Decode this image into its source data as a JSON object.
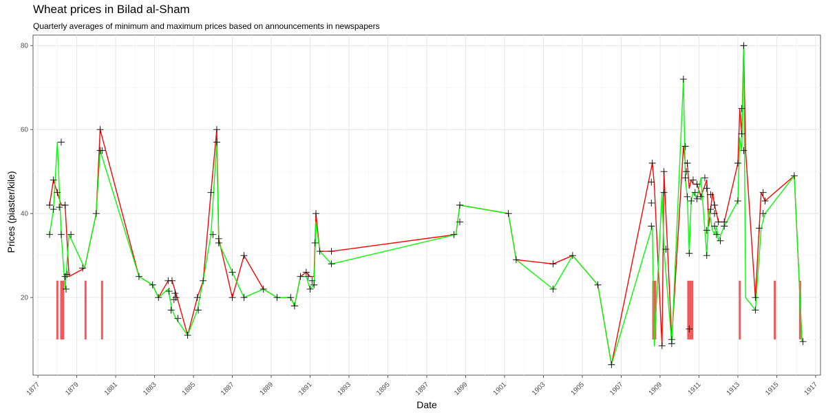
{
  "chart_data": {
    "type": "line",
    "title": "Wheat prices in Bilad al-Sham",
    "subtitle": "Quarterly averages of minimum and maximum prices based on announcements in newspapers",
    "xlabel": "Date",
    "ylabel": "Prices (piaster/kile)",
    "xlim": [
      1876.75,
      1917.25
    ],
    "ylim": [
      1.5,
      82.5
    ],
    "y_ticks": [
      20,
      40,
      60,
      80
    ],
    "x_ticks": [
      "1877",
      "1879",
      "1881",
      "1883",
      "1885",
      "1887",
      "1889",
      "1891",
      "1893",
      "1895",
      "1897",
      "1899",
      "1901",
      "1903",
      "1905",
      "1907",
      "1909",
      "1911",
      "1913",
      "1915",
      "1917"
    ],
    "grid": true,
    "colors": {
      "min_line": "#00FF00",
      "max_line": "#FF0000",
      "markers": "#000000",
      "bars": "#F0595A"
    },
    "series": [
      {
        "role": "max",
        "x": [
          1877.6,
          1877.8,
          1878.0,
          1878.2,
          1878.4,
          1878.6,
          1879.4,
          1880.0,
          1880.2,
          1882.2,
          1882.9,
          1883.2,
          1883.7,
          1883.9,
          1884.1,
          1884.7,
          1885.2,
          1885.5,
          1885.9,
          1886.2,
          1886.3,
          1887.0,
          1887.6,
          1888.6,
          1889.3,
          1890.0,
          1890.2,
          1890.5,
          1890.8,
          1891.0,
          1891.2,
          1891.3,
          1891.5,
          1892.1,
          1898.5,
          1898.7,
          1901.2,
          1901.6,
          1903.5,
          1904.5,
          1905.8,
          1906.5,
          1908.6,
          1908.7,
          1909.1,
          1909.2,
          1909.6,
          1910.2,
          1910.3,
          1910.4,
          1910.5,
          1910.6,
          1910.7,
          1910.9,
          1911.1,
          1911.4,
          1911.5,
          1911.7,
          1911.8,
          1911.9,
          1912.0,
          1912.3,
          1913.0,
          1913.1,
          1913.2,
          1913.3,
          1913.4,
          1913.9,
          1914.2,
          1914.4,
          1915.9,
          1916.3
        ],
        "values": [
          42,
          48,
          45,
          42,
          42,
          25,
          27,
          40,
          60,
          25,
          23,
          20,
          24,
          24,
          21,
          11,
          20,
          24,
          45,
          60,
          34,
          20,
          30,
          22,
          20,
          20,
          18,
          25,
          26,
          25,
          25,
          40,
          31,
          31,
          35,
          42,
          40,
          29,
          28,
          30,
          23,
          4,
          52,
          47,
          8.5,
          50,
          10,
          56,
          52,
          52,
          46,
          48,
          47,
          47,
          44,
          48,
          37,
          45,
          42,
          40,
          38,
          38,
          52,
          65,
          59,
          80,
          55,
          20,
          45,
          43,
          49,
          9.5
        ]
      },
      {
        "role": "min",
        "x": [
          1877.6,
          1877.8,
          1878.0,
          1878.2,
          1878.4,
          1878.6,
          1879.4,
          1880.0,
          1880.2,
          1882.2,
          1882.9,
          1883.2,
          1883.7,
          1883.9,
          1884.1,
          1884.7,
          1885.2,
          1885.5,
          1885.9,
          1886.2,
          1886.3,
          1887.0,
          1887.6,
          1888.6,
          1889.3,
          1890.0,
          1890.2,
          1890.5,
          1890.8,
          1891.0,
          1891.2,
          1891.3,
          1891.5,
          1892.1,
          1898.5,
          1898.7,
          1901.2,
          1901.6,
          1903.5,
          1904.5,
          1905.8,
          1906.5,
          1908.6,
          1908.7,
          1909.1,
          1909.2,
          1909.6,
          1910.2,
          1910.3,
          1910.4,
          1910.5,
          1910.6,
          1910.7,
          1910.9,
          1911.1,
          1911.4,
          1911.5,
          1911.7,
          1911.8,
          1911.9,
          1912.0,
          1912.3,
          1913.0,
          1913.1,
          1913.2,
          1913.3,
          1913.4,
          1913.9,
          1914.2,
          1914.4,
          1915.9,
          1916.3
        ],
        "values": [
          35,
          41,
          57,
          35,
          22,
          35,
          27,
          40,
          55,
          25,
          23,
          20,
          22,
          17,
          15,
          11,
          17,
          24,
          35,
          57,
          33,
          26,
          20,
          22,
          20,
          20,
          18,
          25,
          25,
          22,
          23,
          38,
          31,
          28,
          35,
          42,
          40,
          29,
          22,
          30,
          23,
          4,
          37,
          8.5,
          45,
          31.5,
          9,
          72,
          48,
          44,
          30.5,
          43,
          45,
          43.5,
          48.5,
          30,
          41,
          36,
          35,
          37,
          33.5,
          37,
          43,
          58,
          55,
          80,
          20,
          17,
          36.5,
          40,
          49,
          9.5
        ]
      }
    ],
    "markers": [
      {
        "x": 1877.6,
        "y": 42
      },
      {
        "x": 1877.6,
        "y": 35
      },
      {
        "x": 1877.8,
        "y": 48
      },
      {
        "x": 1877.8,
        "y": 41
      },
      {
        "x": 1878.0,
        "y": 45
      },
      {
        "x": 1878.1,
        "y": 41.5
      },
      {
        "x": 1878.2,
        "y": 57
      },
      {
        "x": 1878.2,
        "y": 35
      },
      {
        "x": 1878.4,
        "y": 42
      },
      {
        "x": 1878.4,
        "y": 25
      },
      {
        "x": 1878.5,
        "y": 25.5
      },
      {
        "x": 1878.45,
        "y": 22
      },
      {
        "x": 1878.7,
        "y": 35
      },
      {
        "x": 1879.3,
        "y": 27
      },
      {
        "x": 1880.0,
        "y": 40
      },
      {
        "x": 1880.2,
        "y": 60
      },
      {
        "x": 1880.2,
        "y": 55
      },
      {
        "x": 1880.3,
        "y": 55
      },
      {
        "x": 1882.2,
        "y": 25
      },
      {
        "x": 1882.9,
        "y": 23
      },
      {
        "x": 1883.2,
        "y": 20
      },
      {
        "x": 1883.7,
        "y": 24
      },
      {
        "x": 1883.75,
        "y": 21.5
      },
      {
        "x": 1883.9,
        "y": 24
      },
      {
        "x": 1883.85,
        "y": 17
      },
      {
        "x": 1884.0,
        "y": 19.5
      },
      {
        "x": 1884.05,
        "y": 21
      },
      {
        "x": 1884.1,
        "y": 20
      },
      {
        "x": 1884.2,
        "y": 15
      },
      {
        "x": 1884.7,
        "y": 11
      },
      {
        "x": 1885.2,
        "y": 20
      },
      {
        "x": 1885.25,
        "y": 17
      },
      {
        "x": 1885.5,
        "y": 24
      },
      {
        "x": 1885.9,
        "y": 45
      },
      {
        "x": 1886.0,
        "y": 35
      },
      {
        "x": 1886.2,
        "y": 60
      },
      {
        "x": 1886.2,
        "y": 57
      },
      {
        "x": 1886.3,
        "y": 34
      },
      {
        "x": 1886.3,
        "y": 33
      },
      {
        "x": 1887.0,
        "y": 26
      },
      {
        "x": 1887.0,
        "y": 20
      },
      {
        "x": 1887.6,
        "y": 30
      },
      {
        "x": 1887.6,
        "y": 20
      },
      {
        "x": 1888.6,
        "y": 22
      },
      {
        "x": 1889.3,
        "y": 20
      },
      {
        "x": 1890.0,
        "y": 20
      },
      {
        "x": 1890.2,
        "y": 18
      },
      {
        "x": 1890.5,
        "y": 25
      },
      {
        "x": 1890.8,
        "y": 26
      },
      {
        "x": 1890.9,
        "y": 25
      },
      {
        "x": 1891.0,
        "y": 22
      },
      {
        "x": 1891.1,
        "y": 24
      },
      {
        "x": 1891.2,
        "y": 23
      },
      {
        "x": 1891.3,
        "y": 40
      },
      {
        "x": 1891.25,
        "y": 33
      },
      {
        "x": 1891.5,
        "y": 31
      },
      {
        "x": 1892.1,
        "y": 31
      },
      {
        "x": 1892.1,
        "y": 28
      },
      {
        "x": 1898.4,
        "y": 35
      },
      {
        "x": 1898.7,
        "y": 42
      },
      {
        "x": 1898.7,
        "y": 38
      },
      {
        "x": 1901.2,
        "y": 40
      },
      {
        "x": 1901.6,
        "y": 29
      },
      {
        "x": 1903.5,
        "y": 28
      },
      {
        "x": 1903.5,
        "y": 22
      },
      {
        "x": 1904.5,
        "y": 30
      },
      {
        "x": 1905.8,
        "y": 23
      },
      {
        "x": 1906.5,
        "y": 4
      },
      {
        "x": 1908.6,
        "y": 52
      },
      {
        "x": 1908.55,
        "y": 47.5
      },
      {
        "x": 1908.55,
        "y": 42.5
      },
      {
        "x": 1908.55,
        "y": 37
      },
      {
        "x": 1909.1,
        "y": 8.5
      },
      {
        "x": 1909.2,
        "y": 50
      },
      {
        "x": 1909.2,
        "y": 45
      },
      {
        "x": 1909.3,
        "y": 31.5
      },
      {
        "x": 1909.6,
        "y": 10
      },
      {
        "x": 1909.6,
        "y": 9
      },
      {
        "x": 1910.2,
        "y": 72
      },
      {
        "x": 1910.3,
        "y": 56
      },
      {
        "x": 1910.35,
        "y": 50
      },
      {
        "x": 1910.3,
        "y": 48.5
      },
      {
        "x": 1910.4,
        "y": 52
      },
      {
        "x": 1910.4,
        "y": 44
      },
      {
        "x": 1910.5,
        "y": 30.5
      },
      {
        "x": 1910.5,
        "y": 12.5
      },
      {
        "x": 1910.6,
        "y": 43
      },
      {
        "x": 1910.7,
        "y": 48
      },
      {
        "x": 1910.8,
        "y": 45
      },
      {
        "x": 1910.9,
        "y": 47
      },
      {
        "x": 1910.9,
        "y": 43.5
      },
      {
        "x": 1911.1,
        "y": 44
      },
      {
        "x": 1911.3,
        "y": 48.5
      },
      {
        "x": 1911.4,
        "y": 46
      },
      {
        "x": 1911.4,
        "y": 36
      },
      {
        "x": 1911.4,
        "y": 30
      },
      {
        "x": 1911.6,
        "y": 44.5
      },
      {
        "x": 1911.6,
        "y": 41
      },
      {
        "x": 1911.8,
        "y": 42
      },
      {
        "x": 1911.8,
        "y": 40
      },
      {
        "x": 1911.8,
        "y": 37
      },
      {
        "x": 1911.9,
        "y": 35
      },
      {
        "x": 1912.0,
        "y": 38
      },
      {
        "x": 1912.1,
        "y": 33.5
      },
      {
        "x": 1912.3,
        "y": 38
      },
      {
        "x": 1912.3,
        "y": 37
      },
      {
        "x": 1913.0,
        "y": 52
      },
      {
        "x": 1913.0,
        "y": 43
      },
      {
        "x": 1913.2,
        "y": 65
      },
      {
        "x": 1913.2,
        "y": 59
      },
      {
        "x": 1913.3,
        "y": 80
      },
      {
        "x": 1913.3,
        "y": 55
      },
      {
        "x": 1913.9,
        "y": 20
      },
      {
        "x": 1913.9,
        "y": 17
      },
      {
        "x": 1914.1,
        "y": 36.5
      },
      {
        "x": 1914.3,
        "y": 45
      },
      {
        "x": 1914.3,
        "y": 40
      },
      {
        "x": 1914.4,
        "y": 43
      },
      {
        "x": 1915.9,
        "y": 49
      },
      {
        "x": 1916.35,
        "y": 9.5
      }
    ],
    "bars": [
      {
        "x": 1878.0,
        "y0": 10,
        "y1": 24
      },
      {
        "x": 1878.2,
        "y0": 10,
        "y1": 24
      },
      {
        "x": 1878.3,
        "y0": 10,
        "y1": 24
      },
      {
        "x": 1879.45,
        "y0": 10,
        "y1": 24
      },
      {
        "x": 1880.3,
        "y0": 10,
        "y1": 24
      },
      {
        "x": 1908.65,
        "y0": 10,
        "y1": 24
      },
      {
        "x": 1908.75,
        "y0": 10,
        "y1": 24
      },
      {
        "x": 1910.45,
        "y0": 10,
        "y1": 24
      },
      {
        "x": 1910.55,
        "y0": 10,
        "y1": 24
      },
      {
        "x": 1910.65,
        "y0": 10,
        "y1": 24
      },
      {
        "x": 1913.1,
        "y0": 10,
        "y1": 24
      },
      {
        "x": 1914.9,
        "y0": 10,
        "y1": 24
      },
      {
        "x": 1916.2,
        "y0": 10,
        "y1": 24
      }
    ]
  }
}
